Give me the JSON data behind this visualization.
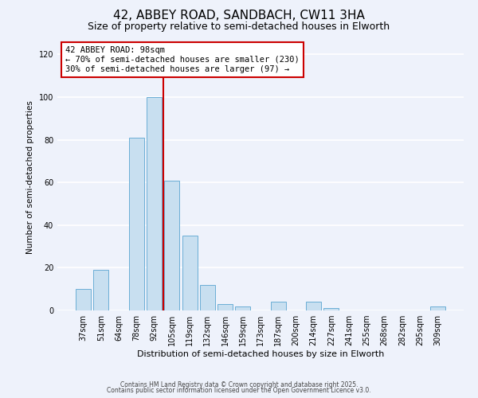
{
  "title": "42, ABBEY ROAD, SANDBACH, CW11 3HA",
  "subtitle": "Size of property relative to semi-detached houses in Elworth",
  "xlabel": "Distribution of semi-detached houses by size in Elworth",
  "ylabel": "Number of semi-detached properties",
  "categories": [
    "37sqm",
    "51sqm",
    "64sqm",
    "78sqm",
    "92sqm",
    "105sqm",
    "119sqm",
    "132sqm",
    "146sqm",
    "159sqm",
    "173sqm",
    "187sqm",
    "200sqm",
    "214sqm",
    "227sqm",
    "241sqm",
    "255sqm",
    "268sqm",
    "282sqm",
    "295sqm",
    "309sqm"
  ],
  "values": [
    10,
    19,
    0,
    81,
    100,
    61,
    35,
    12,
    3,
    2,
    0,
    4,
    0,
    4,
    1,
    0,
    0,
    0,
    0,
    0,
    2
  ],
  "bar_color": "#c8dff0",
  "bar_edge_color": "#6baed6",
  "vline_x_index": 4.5,
  "vline_color": "#cc0000",
  "annotation_title": "42 ABBEY ROAD: 98sqm",
  "annotation_line1": "← 70% of semi-detached houses are smaller (230)",
  "annotation_line2": "30% of semi-detached houses are larger (97) →",
  "ylim": [
    0,
    125
  ],
  "yticks": [
    0,
    20,
    40,
    60,
    80,
    100,
    120
  ],
  "footer1": "Contains HM Land Registry data © Crown copyright and database right 2025.",
  "footer2": "Contains public sector information licensed under the Open Government Licence v3.0.",
  "background_color": "#eef2fb",
  "grid_color": "#ffffff",
  "title_fontsize": 11,
  "subtitle_fontsize": 9
}
